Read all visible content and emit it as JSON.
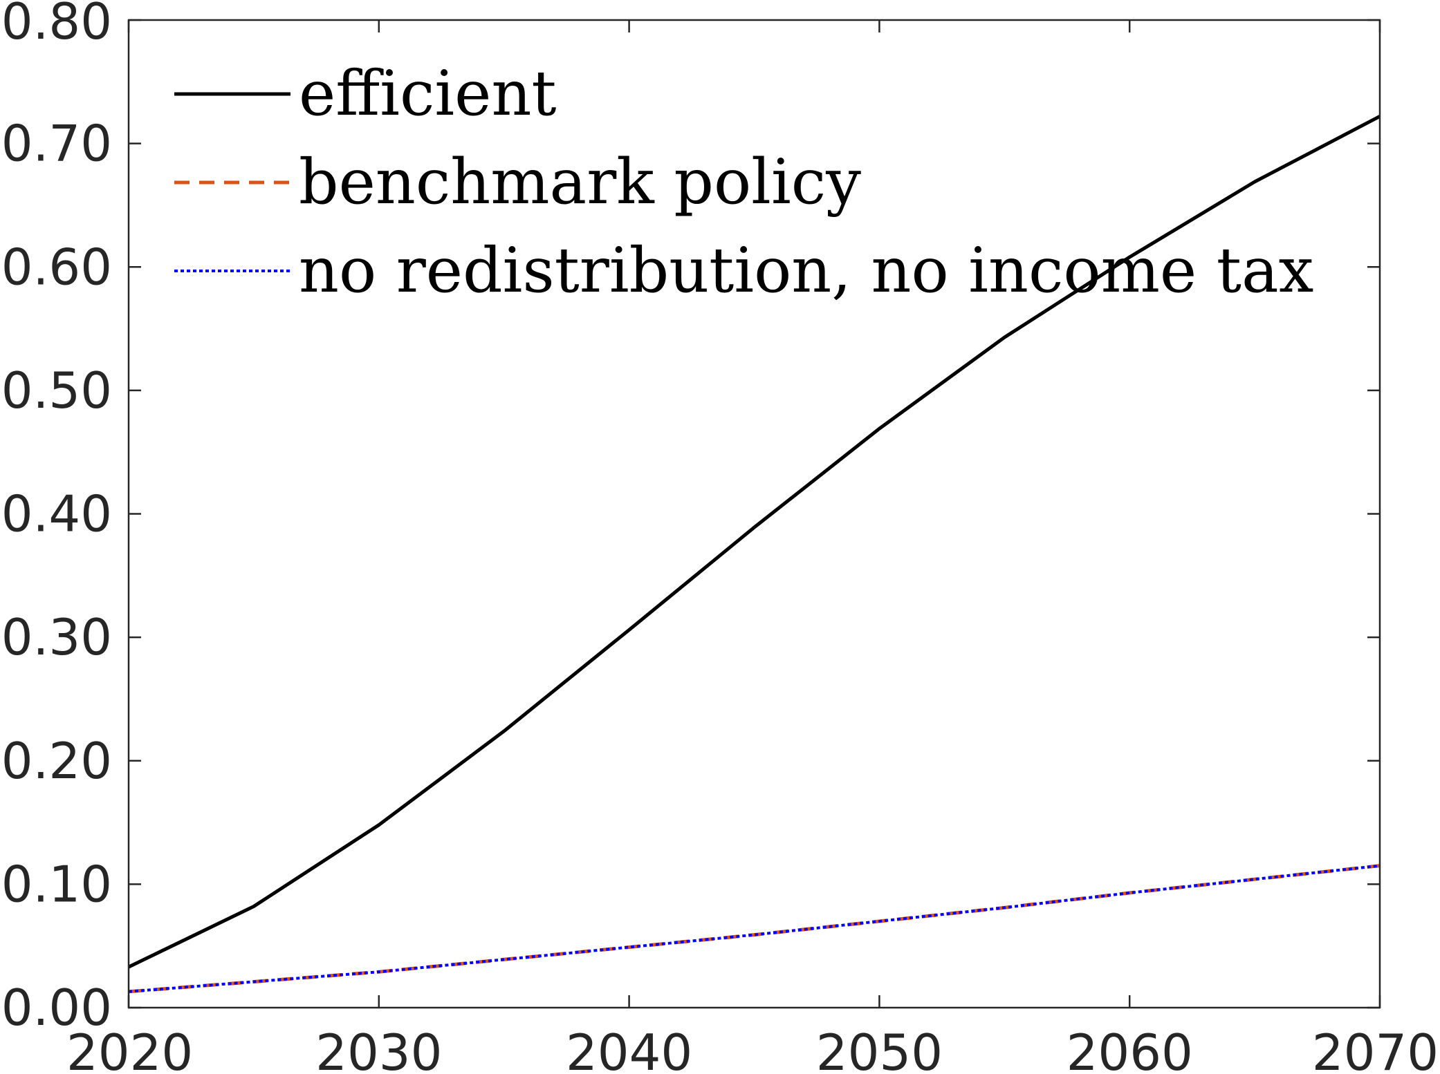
{
  "chart_data": {
    "type": "line",
    "xlim": [
      2020,
      2070
    ],
    "ylim": [
      0,
      0.8
    ],
    "x_ticks": [
      2020,
      2030,
      2040,
      2050,
      2060,
      2070
    ],
    "y_ticks": [
      0,
      0.1,
      0.2,
      0.3,
      0.4,
      0.5,
      0.6,
      0.7,
      0.8
    ],
    "x_tick_labels": [
      "2020",
      "2030",
      "2040",
      "2050",
      "2060",
      "2070"
    ],
    "y_tick_labels": [
      "0.00",
      "0.10",
      "0.20",
      "0.30",
      "0.40",
      "0.50",
      "0.60",
      "0.70",
      "0.80"
    ],
    "grid": false,
    "legend_position": "top-left",
    "series": [
      {
        "name": "efficient",
        "color": "#000000",
        "style": "solid",
        "x": [
          2020,
          2025,
          2030,
          2035,
          2040,
          2045,
          2050,
          2055,
          2060,
          2065,
          2070
        ],
        "y": [
          0.033,
          0.082,
          0.148,
          0.224,
          0.306,
          0.389,
          0.469,
          0.543,
          0.608,
          0.669,
          0.722
        ]
      },
      {
        "name": "benchmark policy",
        "color": "#d95319",
        "style": "dashed",
        "x": [
          2020,
          2025,
          2030,
          2035,
          2040,
          2045,
          2050,
          2055,
          2060,
          2065,
          2070
        ],
        "y": [
          0.013,
          0.021,
          0.029,
          0.039,
          0.049,
          0.059,
          0.07,
          0.081,
          0.093,
          0.104,
          0.115
        ]
      },
      {
        "name": "no redistribution, no income tax",
        "color": "#0000ff",
        "style": "dotted",
        "x": [
          2020,
          2025,
          2030,
          2035,
          2040,
          2045,
          2050,
          2055,
          2060,
          2065,
          2070
        ],
        "y": [
          0.013,
          0.021,
          0.029,
          0.039,
          0.049,
          0.059,
          0.07,
          0.081,
          0.093,
          0.104,
          0.115
        ]
      }
    ]
  }
}
